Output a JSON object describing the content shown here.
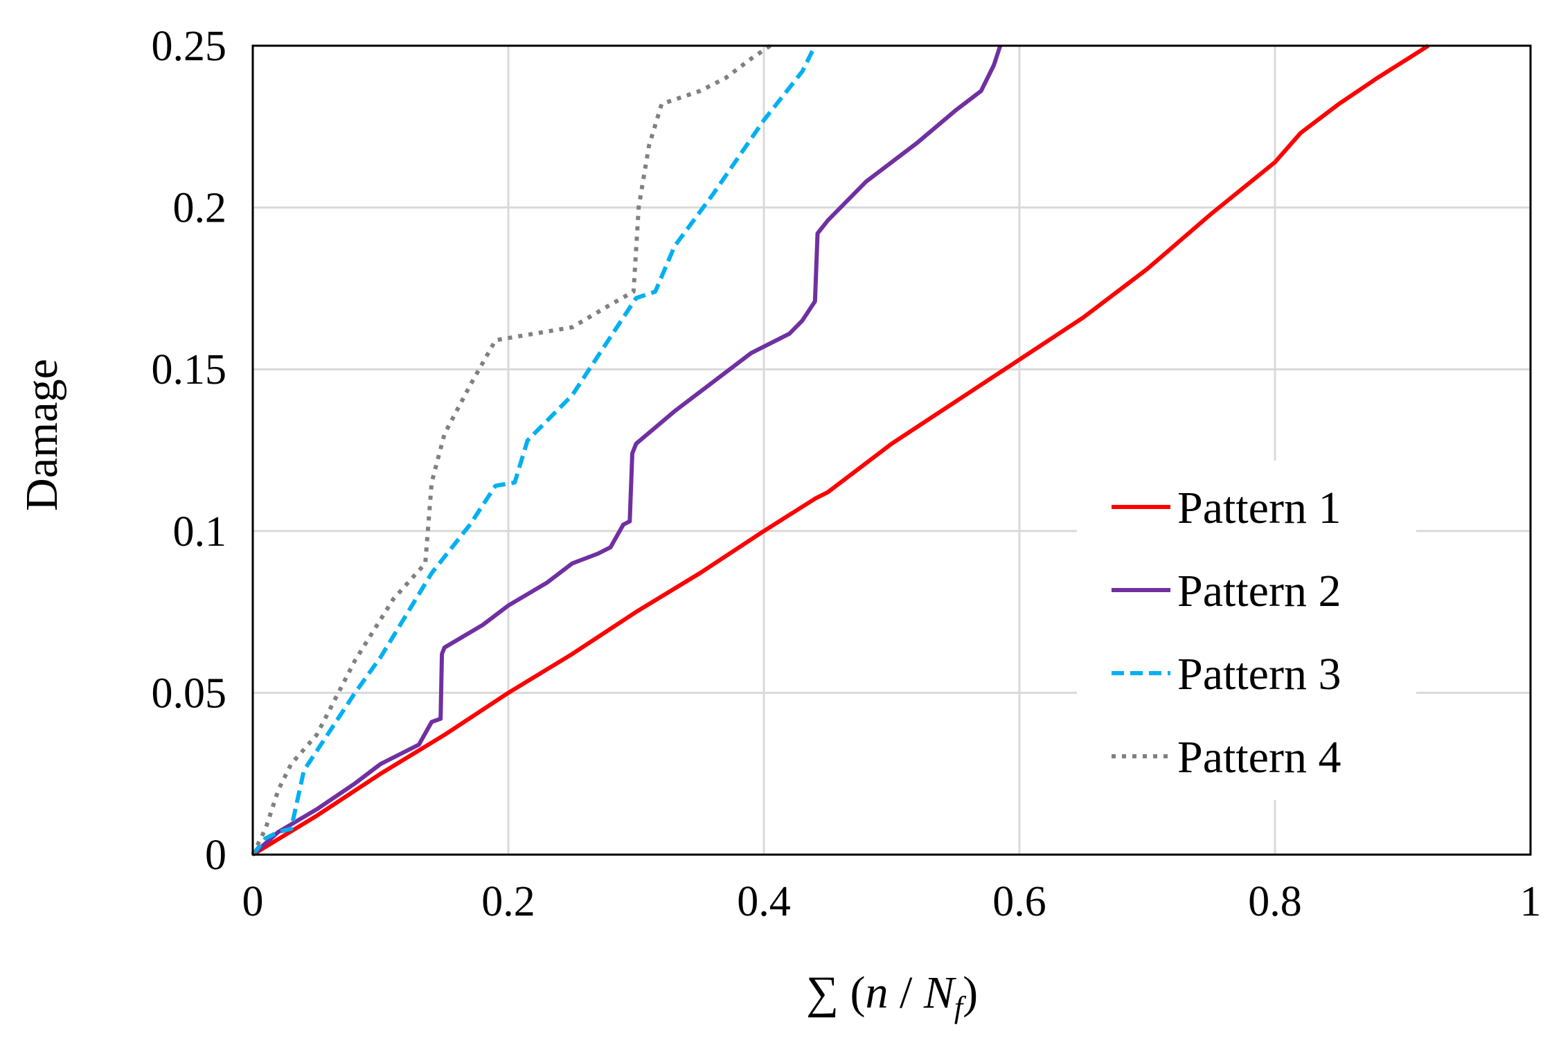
{
  "chart_data": {
    "type": "line",
    "title": "",
    "xlabel_prefix": "∑ (",
    "xlabel_n": "n",
    "xlabel_sep": " / ",
    "xlabel_N": "N",
    "xlabel_sub": "f",
    "xlabel_suffix": ")",
    "ylabel": "Damage",
    "xlim": [
      0,
      1
    ],
    "ylim": [
      0,
      0.25
    ],
    "grid": true,
    "legend_position": "right",
    "x_ticks": [
      0,
      0.2,
      0.4,
      0.6,
      0.8,
      1
    ],
    "x_tick_labels": [
      "0",
      "0.2",
      "0.4",
      "0.6",
      "0.8",
      "1"
    ],
    "y_ticks": [
      0,
      0.05,
      0.1,
      0.15,
      0.2,
      0.25
    ],
    "y_tick_labels": [
      "0",
      "0.05",
      "0.1",
      "0.15",
      "0.2",
      "0.25"
    ],
    "series": [
      {
        "name": "Pattern 1",
        "color": "#ff0000",
        "dash": "solid",
        "x": [
          0,
          0.05,
          0.1,
          0.15,
          0.2,
          0.25,
          0.3,
          0.35,
          0.4,
          0.44,
          0.45,
          0.5,
          0.55,
          0.6,
          0.65,
          0.7,
          0.75,
          0.8,
          0.82,
          0.85,
          0.88,
          0.9,
          0.92
        ],
        "y": [
          0,
          0.012,
          0.025,
          0.037,
          0.05,
          0.062,
          0.075,
          0.087,
          0.1,
          0.11,
          0.112,
          0.127,
          0.14,
          0.153,
          0.166,
          0.181,
          0.198,
          0.214,
          0.223,
          0.232,
          0.24,
          0.245,
          0.25
        ]
      },
      {
        "name": "Pattern 2",
        "color": "#7030a0",
        "dash": "solid",
        "x": [
          0,
          0.02,
          0.05,
          0.08,
          0.1,
          0.12,
          0.13,
          0.14,
          0.147,
          0.148,
          0.15,
          0.18,
          0.2,
          0.23,
          0.25,
          0.27,
          0.28,
          0.29,
          0.295,
          0.297,
          0.3,
          0.33,
          0.36,
          0.39,
          0.41,
          0.42,
          0.43,
          0.44,
          0.442,
          0.45,
          0.48,
          0.52,
          0.55,
          0.57,
          0.58,
          0.585
        ],
        "y": [
          0,
          0.007,
          0.014,
          0.022,
          0.028,
          0.032,
          0.034,
          0.041,
          0.042,
          0.062,
          0.064,
          0.071,
          0.077,
          0.084,
          0.09,
          0.093,
          0.095,
          0.102,
          0.103,
          0.124,
          0.127,
          0.137,
          0.146,
          0.155,
          0.159,
          0.161,
          0.165,
          0.171,
          0.192,
          0.196,
          0.208,
          0.22,
          0.23,
          0.236,
          0.244,
          0.25
        ]
      },
      {
        "name": "Pattern 3",
        "color": "#00b0f0",
        "dash": "dashed",
        "x": [
          0,
          0.01,
          0.02,
          0.03,
          0.04,
          0.06,
          0.08,
          0.1,
          0.12,
          0.14,
          0.17,
          0.19,
          0.205,
          0.215,
          0.25,
          0.28,
          0.3,
          0.315,
          0.33,
          0.36,
          0.4,
          0.43,
          0.44
        ],
        "y": [
          0,
          0.005,
          0.007,
          0.008,
          0.026,
          0.038,
          0.05,
          0.061,
          0.074,
          0.087,
          0.102,
          0.114,
          0.115,
          0.128,
          0.142,
          0.16,
          0.172,
          0.174,
          0.188,
          0.204,
          0.227,
          0.242,
          0.25
        ]
      },
      {
        "name": "Pattern 4",
        "color": "#808080",
        "dash": "dotted",
        "x": [
          0,
          0.01,
          0.02,
          0.03,
          0.05,
          0.08,
          0.11,
          0.135,
          0.14,
          0.15,
          0.17,
          0.19,
          0.25,
          0.28,
          0.298,
          0.302,
          0.31,
          0.32,
          0.35,
          0.37,
          0.39,
          0.405
        ],
        "y": [
          0,
          0.008,
          0.02,
          0.028,
          0.037,
          0.06,
          0.079,
          0.09,
          0.115,
          0.13,
          0.145,
          0.159,
          0.163,
          0.17,
          0.174,
          0.2,
          0.219,
          0.232,
          0.236,
          0.24,
          0.246,
          0.25
        ]
      }
    ]
  }
}
